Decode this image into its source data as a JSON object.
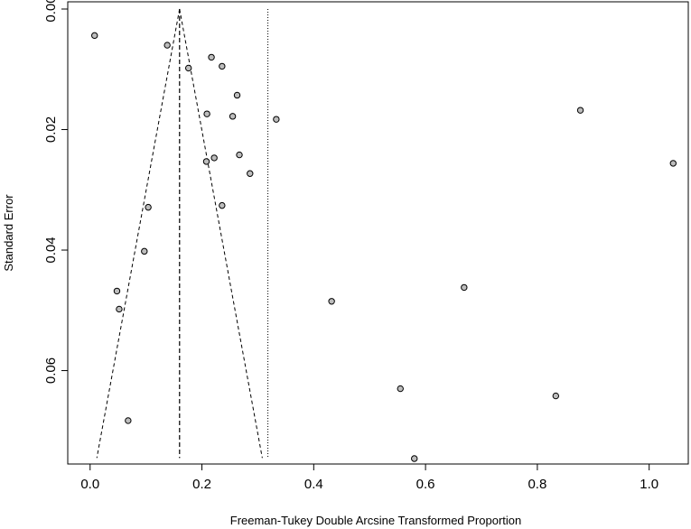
{
  "chart_data": {
    "type": "scatter",
    "title": "",
    "xlabel": "Freeman-Tukey Double Arcsine Transformed Proportion",
    "ylabel": "Standard Error",
    "xlim": [
      -0.04,
      1.07
    ],
    "ylim": [
      0.0755,
      -0.0012
    ],
    "y_reversed": true,
    "grid": false,
    "legend": "none",
    "x_ticks": [
      0.0,
      0.2,
      0.4,
      0.6,
      0.8,
      1.0
    ],
    "x_tick_labels": [
      "0.0",
      "0.2",
      "0.4",
      "0.6",
      "0.8",
      "1.0"
    ],
    "y_ticks": [
      0.0,
      0.02,
      0.04,
      0.06
    ],
    "y_tick_labels": [
      "0.00",
      "0.02",
      "0.04",
      "0.06"
    ],
    "point_color": "#bdbdbd",
    "points": [
      {
        "x": 0.008,
        "y": 0.0044
      },
      {
        "x": 0.138,
        "y": 0.006
      },
      {
        "x": 0.217,
        "y": 0.008
      },
      {
        "x": 0.176,
        "y": 0.0098
      },
      {
        "x": 0.236,
        "y": 0.0095
      },
      {
        "x": 0.263,
        "y": 0.0143
      },
      {
        "x": 0.209,
        "y": 0.0174
      },
      {
        "x": 0.255,
        "y": 0.0178
      },
      {
        "x": 0.333,
        "y": 0.0183
      },
      {
        "x": 0.877,
        "y": 0.0168
      },
      {
        "x": 0.267,
        "y": 0.0242
      },
      {
        "x": 0.222,
        "y": 0.0247
      },
      {
        "x": 0.208,
        "y": 0.0253
      },
      {
        "x": 0.286,
        "y": 0.0273
      },
      {
        "x": 1.043,
        "y": 0.0256
      },
      {
        "x": 0.104,
        "y": 0.0329
      },
      {
        "x": 0.236,
        "y": 0.0326
      },
      {
        "x": 0.097,
        "y": 0.0402
      },
      {
        "x": 0.048,
        "y": 0.0468
      },
      {
        "x": 0.052,
        "y": 0.0498
      },
      {
        "x": 0.432,
        "y": 0.0485
      },
      {
        "x": 0.669,
        "y": 0.0462
      },
      {
        "x": 0.555,
        "y": 0.063
      },
      {
        "x": 0.833,
        "y": 0.0642
      },
      {
        "x": 0.068,
        "y": 0.0683
      },
      {
        "x": 0.58,
        "y": 0.0746
      }
    ],
    "reference_lines": {
      "pooled_estimate": 0.16,
      "vertical_dotted": 0.318,
      "funnel_apex": {
        "x": 0.16,
        "y": 0.0
      },
      "funnel_base_y": 0.0745,
      "funnel_base_left": 0.012,
      "funnel_base_right": 0.308
    }
  }
}
